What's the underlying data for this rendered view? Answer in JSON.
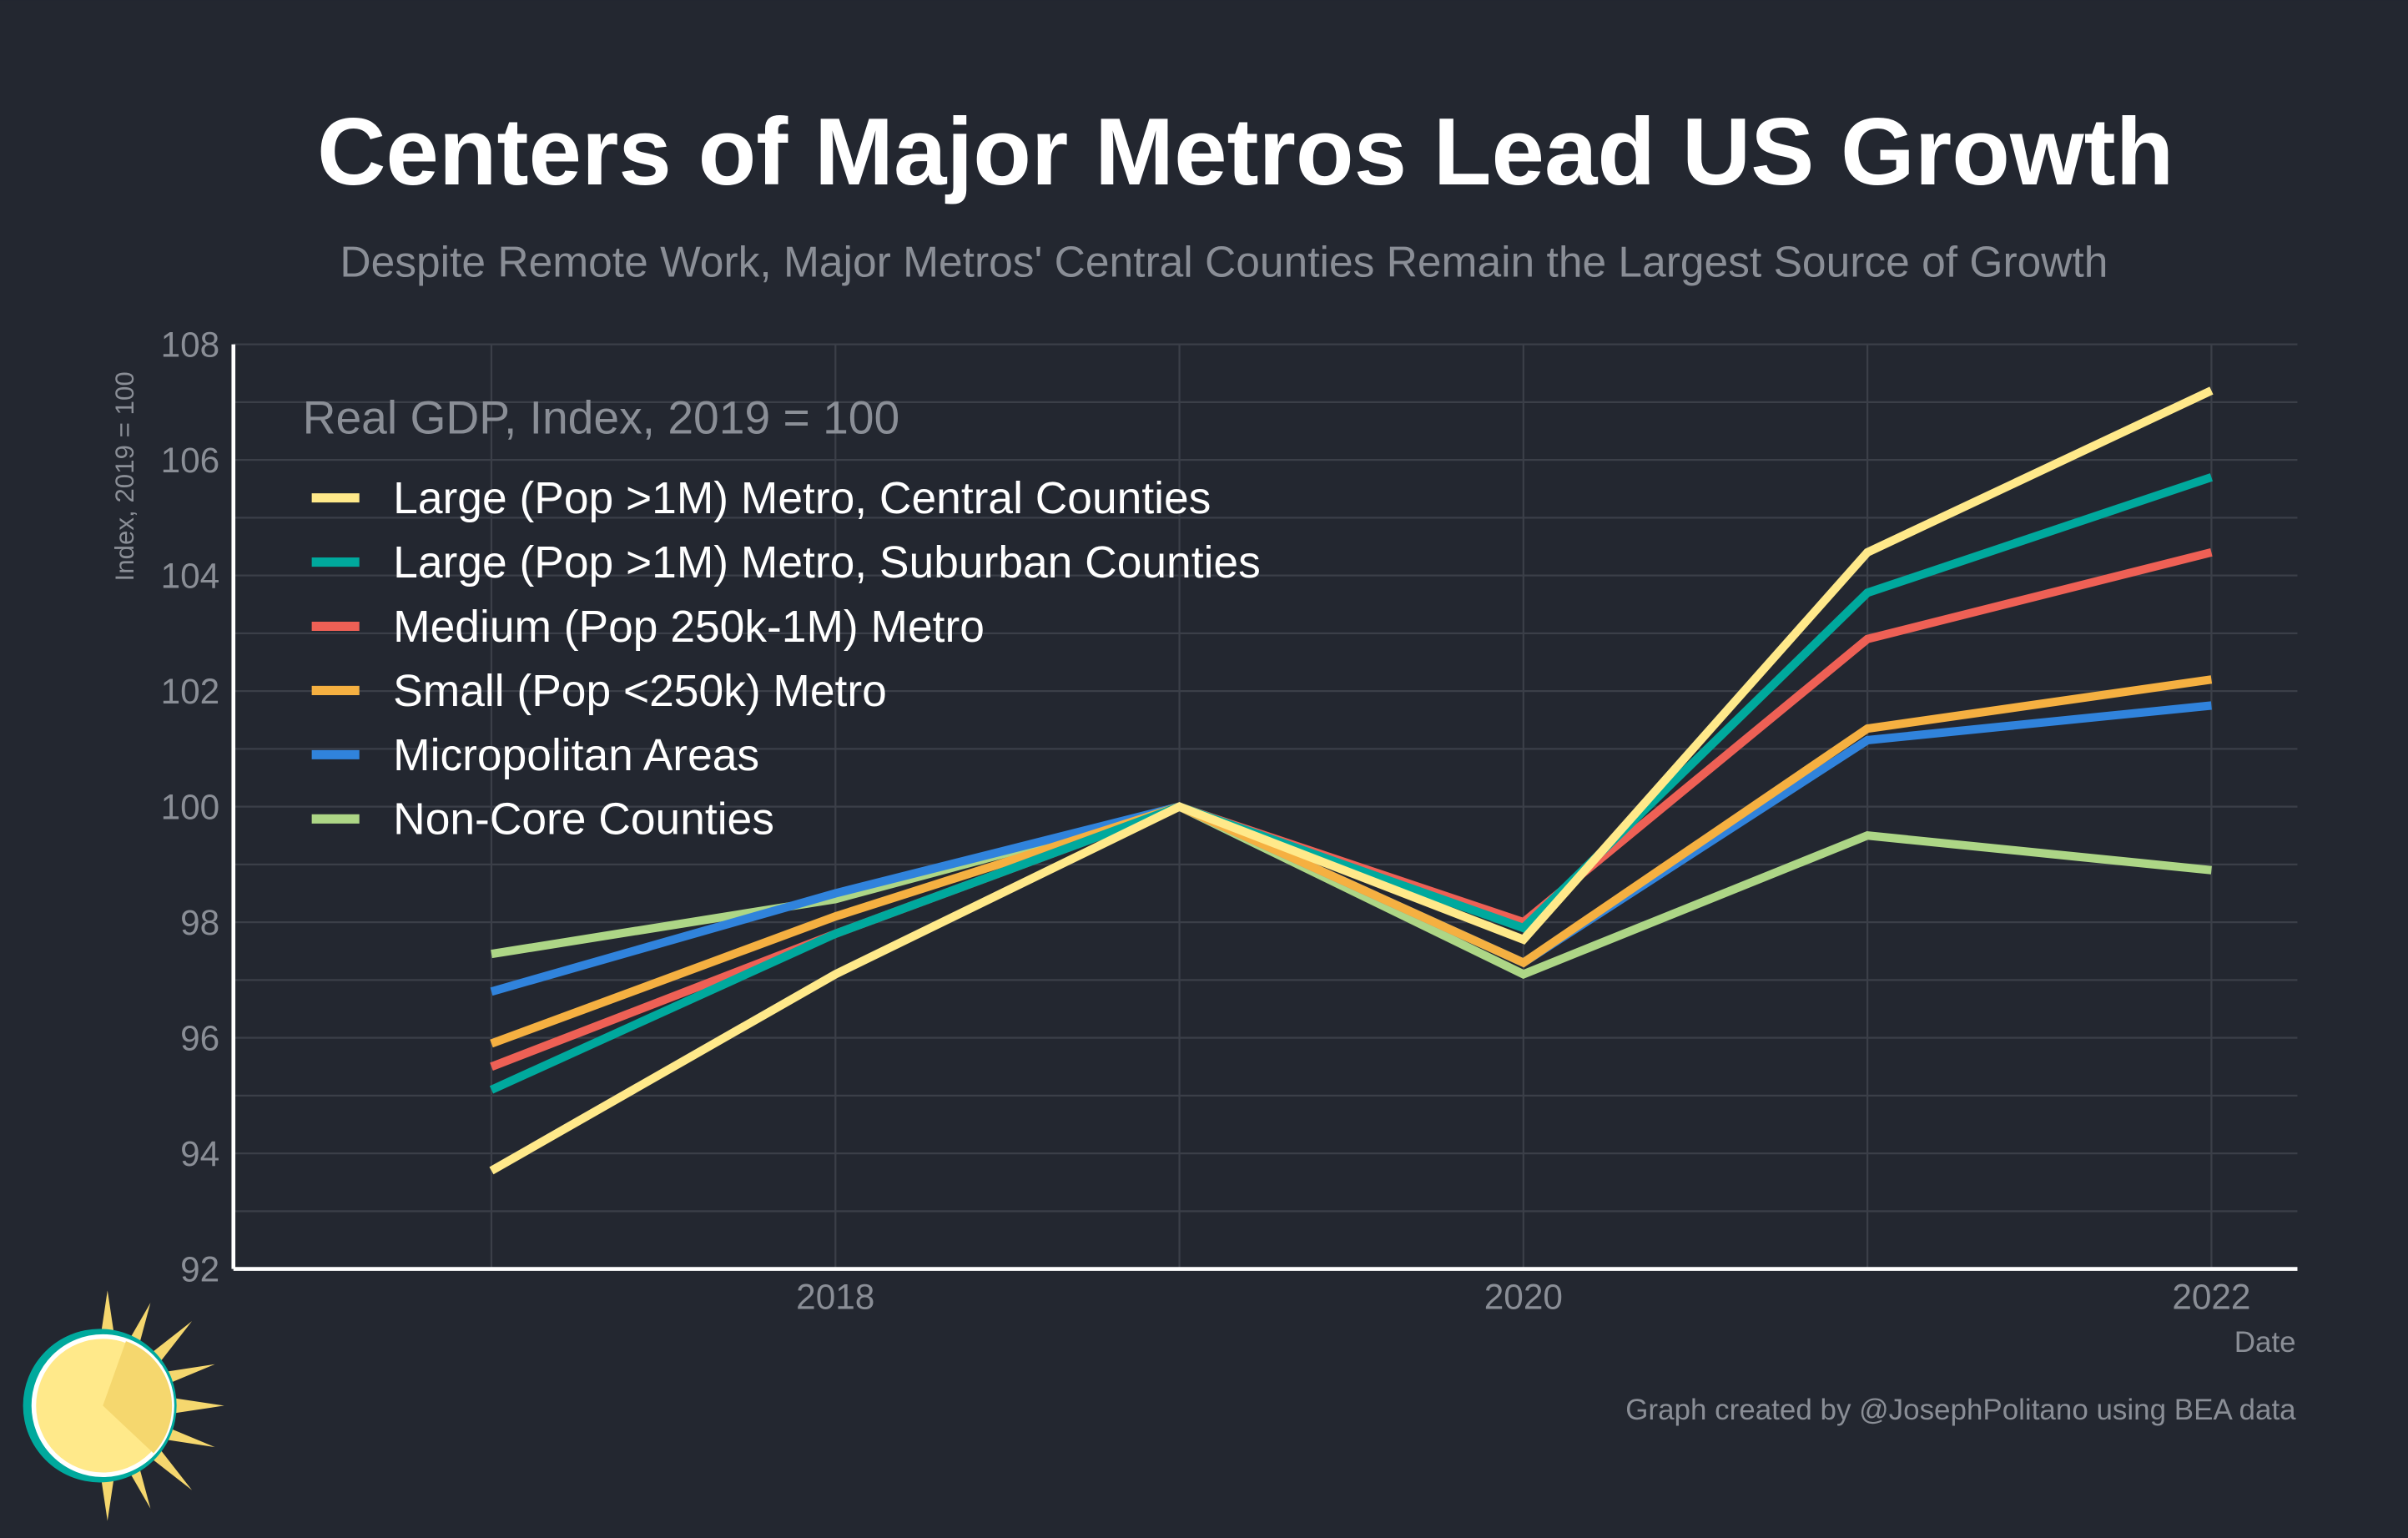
{
  "chart_data": {
    "type": "line",
    "title": "Centers of Major Metros Lead US Growth",
    "subtitle": "Despite Remote Work, Major Metros' Central Counties Remain the Largest Source of Growth",
    "xlabel": "Date",
    "ylabel": "Index, 2019 = 100",
    "legend_title": "Real GDP, Index, 2019 = 100",
    "legend_position": "top-left",
    "grid": true,
    "x": [
      2017,
      2018,
      2019,
      2020,
      2021,
      2022
    ],
    "xlim": [
      2016.25,
      2022.25
    ],
    "ylim": [
      92,
      108
    ],
    "x_ticks": [
      "2018",
      "2020",
      "2022"
    ],
    "y_ticks": [
      "92",
      "94",
      "96",
      "98",
      "100",
      "102",
      "104",
      "106",
      "108"
    ],
    "series": [
      {
        "name": "Large (Pop >1M) Metro, Central Counties",
        "color": "#FFE98A",
        "values": [
          93.7,
          97.1,
          100,
          97.7,
          104.4,
          107.2
        ]
      },
      {
        "name": "Large (Pop >1M) Metro, Suburban Counties",
        "color": "#00A99D",
        "values": [
          95.1,
          97.8,
          100,
          97.9,
          103.7,
          105.7
        ]
      },
      {
        "name": "Medium (Pop 250k-1M) Metro",
        "color": "#EE6055",
        "values": [
          95.5,
          97.8,
          100,
          98.0,
          102.9,
          104.4
        ]
      },
      {
        "name": "Small (Pop <250k) Metro",
        "color": "#F5B041",
        "values": [
          95.9,
          98.1,
          100,
          97.3,
          101.35,
          102.2
        ]
      },
      {
        "name": "Micropolitan Areas",
        "color": "#3083DC",
        "values": [
          96.8,
          98.5,
          100,
          97.3,
          101.15,
          101.75
        ]
      },
      {
        "name": "Non-Core Counties",
        "color": "#ADD686",
        "values": [
          97.45,
          98.4,
          100,
          97.1,
          99.5,
          98.9
        ]
      }
    ]
  },
  "footer": {
    "credit": "Graph created by @JosephPolitano using BEA data"
  }
}
